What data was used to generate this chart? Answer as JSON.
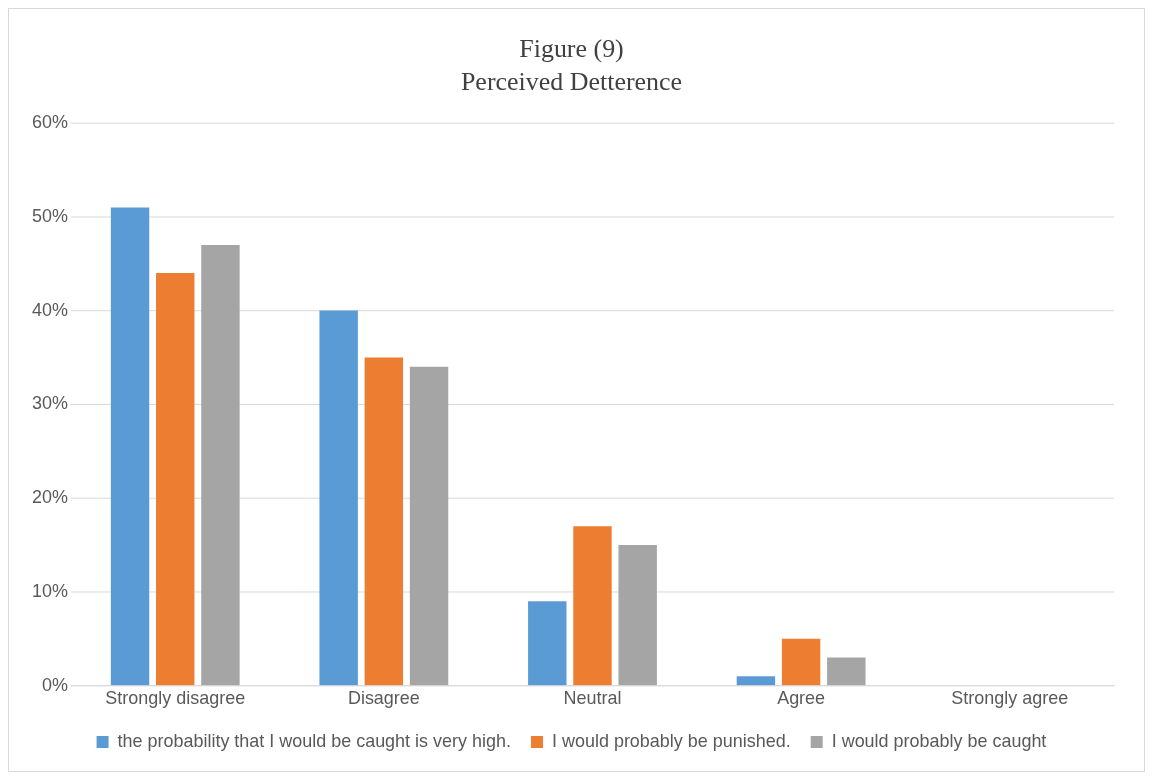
{
  "chart_data": {
    "type": "bar",
    "title": "Figure (9)",
    "subtitle": "Perceived Detterence",
    "categories": [
      "Strongly disagree",
      "Disagree",
      "Neutral",
      "Agree",
      "Strongly agree"
    ],
    "series": [
      {
        "name": "the probability that I would be caught is very high.",
        "color": "#5b9bd5",
        "values": [
          51,
          40,
          9,
          1,
          0
        ]
      },
      {
        "name": "I would probably be punished.",
        "color": "#ed7d31",
        "values": [
          44,
          35,
          17,
          5,
          0
        ]
      },
      {
        "name": "I would probably be caught",
        "color": "#a5a5a5",
        "values": [
          47,
          34,
          15,
          3,
          0
        ]
      }
    ],
    "ylim": [
      0,
      60
    ],
    "yticks": [
      {
        "value": 0,
        "label": "0%"
      },
      {
        "value": 10,
        "label": "10%"
      },
      {
        "value": 20,
        "label": "20%"
      },
      {
        "value": 30,
        "label": "30%"
      },
      {
        "value": 40,
        "label": "40%"
      },
      {
        "value": 50,
        "label": "50%"
      },
      {
        "value": 60,
        "label": "60%"
      }
    ],
    "grid": "y",
    "legend": "bottom"
  }
}
